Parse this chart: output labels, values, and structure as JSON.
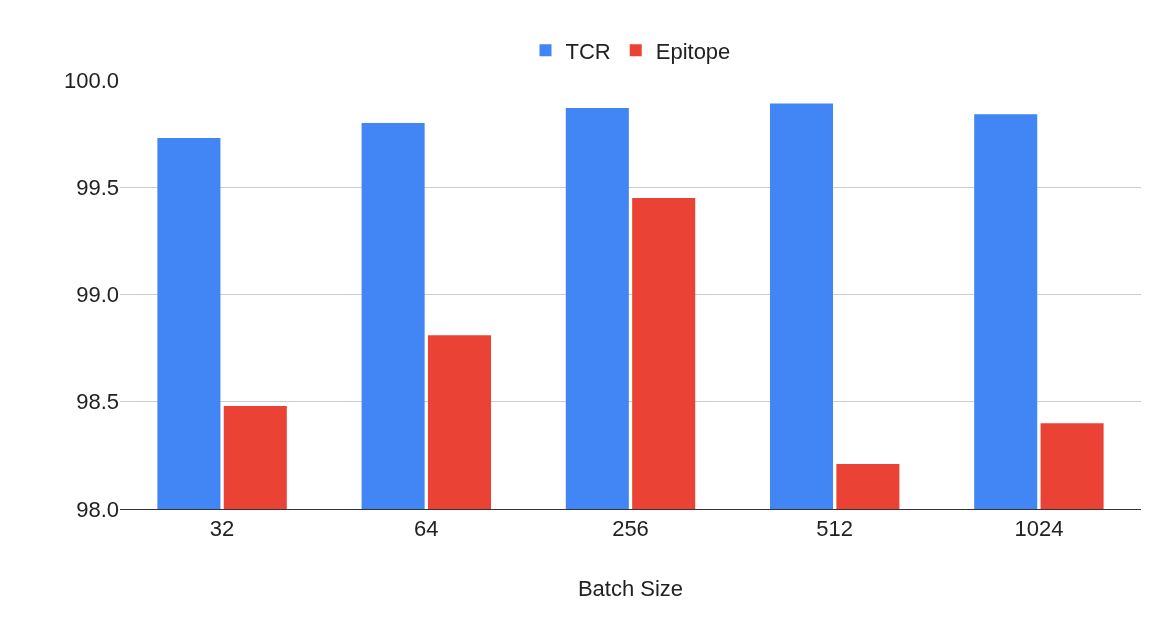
{
  "chart_data": {
    "type": "bar",
    "xlabel": "Batch Size",
    "categories": [
      "32",
      "64",
      "256",
      "512",
      "1024"
    ],
    "series": [
      {
        "name": "TCR",
        "color": "#4285f4",
        "values": [
          99.73,
          99.8,
          99.87,
          99.89,
          99.84
        ]
      },
      {
        "name": "Epitope",
        "color": "#ea4335",
        "values": [
          98.48,
          98.81,
          99.45,
          98.21,
          98.4
        ]
      }
    ],
    "ylim": [
      98,
      100
    ],
    "yticks": [
      {
        "value": 98,
        "label": "98.0"
      },
      {
        "value": 98.5,
        "label": "98.5"
      },
      {
        "value": 99,
        "label": "99.0"
      },
      {
        "value": 99.5,
        "label": "99.5"
      },
      {
        "value": 100,
        "label": "100.0"
      }
    ],
    "grid": "y",
    "legend": "top"
  }
}
